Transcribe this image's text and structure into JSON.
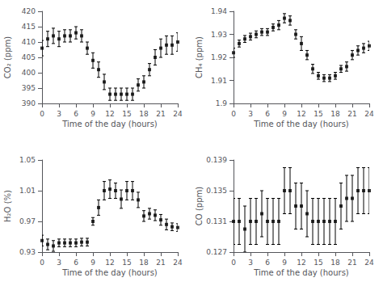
{
  "chart_data": [
    {
      "type": "scatter",
      "marker": "square",
      "color": "black",
      "grid": false,
      "xlabel": "Time of the day (hours)",
      "ylabel": "CO₂ (ppm)",
      "x": [
        0,
        1,
        2,
        3,
        4,
        5,
        6,
        7,
        8,
        9,
        10,
        11,
        12,
        13,
        14,
        15,
        16,
        17,
        18,
        19,
        20,
        21,
        22,
        23,
        24
      ],
      "values": [
        408,
        411,
        412,
        411,
        412,
        412,
        413,
        412,
        408,
        404,
        401,
        397,
        393,
        393,
        393,
        393,
        393,
        396,
        397,
        401,
        405,
        408,
        409,
        409,
        410
      ],
      "yerr": [
        2.5,
        2.5,
        2.5,
        2.5,
        2,
        2,
        2,
        2,
        2,
        2.5,
        2.5,
        2.5,
        2,
        2,
        2,
        2,
        2,
        2,
        2,
        2,
        2.5,
        3,
        3,
        3,
        3
      ],
      "xlim": [
        0,
        24
      ],
      "xticks": [
        0,
        3,
        6,
        9,
        12,
        15,
        18,
        21,
        24
      ],
      "ylim": [
        390,
        420
      ],
      "yticks": [
        390,
        395,
        400,
        405,
        410,
        415,
        420
      ]
    },
    {
      "type": "scatter",
      "marker": "square",
      "color": "black",
      "grid": false,
      "xlabel": "Time of the day (hours)",
      "ylabel": "CH₄ (ppm)",
      "x": [
        0,
        1,
        2,
        3,
        4,
        5,
        6,
        7,
        8,
        9,
        10,
        11,
        12,
        13,
        14,
        15,
        16,
        17,
        18,
        19,
        20,
        21,
        22,
        23,
        24
      ],
      "values": [
        1.922,
        1.926,
        1.928,
        1.929,
        1.93,
        1.931,
        1.931,
        1.933,
        1.934,
        1.937,
        1.936,
        1.93,
        1.926,
        1.921,
        1.915,
        1.912,
        1.911,
        1.911,
        1.912,
        1.915,
        1.916,
        1.921,
        1.923,
        1.924,
        1.925
      ],
      "yerr": [
        0.002,
        0.0015,
        0.0015,
        0.0015,
        0.0015,
        0.0015,
        0.0015,
        0.0015,
        0.002,
        0.002,
        0.002,
        0.002,
        0.003,
        0.002,
        0.002,
        0.0015,
        0.0015,
        0.0015,
        0.0015,
        0.0015,
        0.002,
        0.002,
        0.002,
        0.002,
        0.002
      ],
      "xlim": [
        0,
        24
      ],
      "xticks": [
        0,
        3,
        6,
        9,
        12,
        15,
        18,
        21,
        24
      ],
      "ylim": [
        1.9,
        1.94
      ],
      "yticks": [
        1.9,
        1.91,
        1.92,
        1.93,
        1.94
      ]
    },
    {
      "type": "scatter",
      "marker": "square",
      "color": "black",
      "grid": false,
      "xlabel": "Time of the day (hours)",
      "ylabel": "H₂O (%)",
      "x": [
        0,
        1,
        2,
        3,
        4,
        5,
        6,
        7,
        8,
        9,
        10,
        11,
        12,
        13,
        14,
        15,
        16,
        17,
        18,
        19,
        20,
        21,
        22,
        23,
        24
      ],
      "values": [
        0.945,
        0.94,
        0.938,
        0.942,
        0.942,
        0.942,
        0.942,
        0.943,
        0.943,
        0.97,
        0.988,
        1.01,
        1.012,
        1.01,
        0.999,
        1.01,
        1.01,
        0.998,
        0.977,
        0.98,
        0.978,
        0.972,
        0.966,
        0.963,
        0.962
      ],
      "yerr": [
        0.007,
        0.007,
        0.007,
        0.005,
        0.005,
        0.005,
        0.005,
        0.005,
        0.005,
        0.005,
        0.01,
        0.012,
        0.012,
        0.01,
        0.012,
        0.012,
        0.012,
        0.01,
        0.007,
        0.007,
        0.007,
        0.007,
        0.007,
        0.005,
        0.005
      ],
      "xlim": [
        0,
        24
      ],
      "xticks": [
        0,
        3,
        6,
        9,
        12,
        15,
        18,
        21,
        24
      ],
      "ylim": [
        0.93,
        1.05
      ],
      "yticks": [
        0.93,
        0.97,
        1.01,
        1.05
      ]
    },
    {
      "type": "scatter",
      "marker": "square",
      "color": "black",
      "grid": false,
      "xlabel": "Time of the day (hours)",
      "ylabel": "CO (ppm)",
      "x": [
        0,
        1,
        2,
        3,
        4,
        5,
        6,
        7,
        8,
        9,
        10,
        11,
        12,
        13,
        14,
        15,
        16,
        17,
        18,
        19,
        20,
        21,
        22,
        23,
        24
      ],
      "values": [
        0.131,
        0.131,
        0.13,
        0.131,
        0.131,
        0.132,
        0.131,
        0.131,
        0.131,
        0.135,
        0.135,
        0.133,
        0.133,
        0.132,
        0.131,
        0.131,
        0.131,
        0.131,
        0.131,
        0.133,
        0.134,
        0.134,
        0.135,
        0.135,
        0.135
      ],
      "yerr": [
        0.003,
        0.003,
        0.003,
        0.003,
        0.003,
        0.003,
        0.003,
        0.003,
        0.003,
        0.003,
        0.003,
        0.003,
        0.003,
        0.003,
        0.003,
        0.003,
        0.003,
        0.003,
        0.003,
        0.003,
        0.003,
        0.003,
        0.003,
        0.003,
        0.003
      ],
      "xlim": [
        0,
        24
      ],
      "xticks": [
        0,
        3,
        6,
        9,
        12,
        15,
        18,
        21,
        24
      ],
      "ylim": [
        0.127,
        0.139
      ],
      "yticks": [
        0.127,
        0.131,
        0.135,
        0.139
      ]
    }
  ]
}
